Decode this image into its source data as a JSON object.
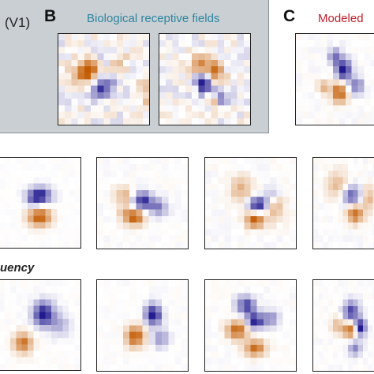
{
  "labels": {
    "v1_fragment": "(V1)",
    "panel_b": "B",
    "panel_b_title": "Biological receptive fields",
    "panel_c": "C",
    "panel_c_title": "Modeled",
    "row3_fragment": "uency"
  },
  "colors": {
    "orange": "#c35a00",
    "blue": "#18108a",
    "panel_bg": "#c9cfd3",
    "title_bio": "#2e86a0",
    "title_mod": "#c0202b"
  },
  "fields": [
    {
      "id": "bio-1",
      "noise": 0.18,
      "seed": 3,
      "blobs": [
        [
          0.32,
          0.42,
          0.55,
          0.55,
          1.0
        ],
        [
          0.48,
          0.58,
          0.5,
          0.42,
          -1.0
        ],
        [
          0.63,
          0.3,
          0.45,
          0.4,
          0.5
        ],
        [
          0.52,
          0.28,
          0.4,
          0.35,
          -0.4
        ],
        [
          0.95,
          0.63,
          0.3,
          0.7,
          0.45
        ]
      ]
    },
    {
      "id": "bio-2",
      "noise": 0.18,
      "seed": 7,
      "blobs": [
        [
          0.45,
          0.32,
          0.4,
          0.4,
          0.75
        ],
        [
          0.5,
          0.55,
          0.35,
          0.45,
          -1.0
        ],
        [
          0.62,
          0.42,
          0.35,
          0.45,
          0.9
        ],
        [
          0.67,
          0.7,
          0.3,
          0.3,
          -0.6
        ],
        [
          0.58,
          0.72,
          0.3,
          0.25,
          0.6
        ]
      ]
    },
    {
      "id": "mod-c",
      "noise": 0.05,
      "seed": 11,
      "blobs": [
        [
          0.45,
          0.25,
          0.35,
          0.35,
          -0.55
        ],
        [
          0.55,
          0.4,
          0.35,
          0.45,
          -1.0
        ],
        [
          0.5,
          0.65,
          0.35,
          0.45,
          1.0
        ],
        [
          0.32,
          0.58,
          0.3,
          0.3,
          0.45
        ],
        [
          0.7,
          0.58,
          0.35,
          0.4,
          -0.55
        ]
      ]
    },
    {
      "id": "r2-1",
      "noise": 0.02,
      "seed": 13,
      "blobs": [
        [
          0.5,
          0.42,
          0.55,
          0.35,
          -1.0
        ],
        [
          0.5,
          0.66,
          0.55,
          0.4,
          1.0
        ],
        [
          0.42,
          0.5,
          0.3,
          0.25,
          -0.3
        ]
      ]
    },
    {
      "id": "r2-2",
      "noise": 0.04,
      "seed": 17,
      "blobs": [
        [
          0.5,
          0.48,
          0.45,
          0.4,
          -0.9
        ],
        [
          0.42,
          0.65,
          0.4,
          0.35,
          1.0
        ],
        [
          0.3,
          0.42,
          0.4,
          0.45,
          0.45
        ],
        [
          0.68,
          0.55,
          0.4,
          0.4,
          -0.5
        ],
        [
          0.3,
          0.62,
          0.3,
          0.4,
          0.3
        ]
      ]
    },
    {
      "id": "r2-3",
      "noise": 0.05,
      "seed": 19,
      "blobs": [
        [
          0.58,
          0.52,
          0.45,
          0.35,
          -0.95
        ],
        [
          0.55,
          0.68,
          0.45,
          0.35,
          0.95
        ],
        [
          0.4,
          0.35,
          0.5,
          0.6,
          0.45
        ],
        [
          0.78,
          0.55,
          0.4,
          0.6,
          0.45
        ],
        [
          0.75,
          0.4,
          0.35,
          0.35,
          -0.3
        ]
      ]
    },
    {
      "id": "r2-4",
      "noise": 0.05,
      "seed": 23,
      "blobs": [
        [
          0.55,
          0.42,
          0.5,
          0.45,
          -0.7
        ],
        [
          0.6,
          0.62,
          0.45,
          0.4,
          0.9
        ],
        [
          0.35,
          0.3,
          0.6,
          0.6,
          0.4
        ],
        [
          0.8,
          0.45,
          0.4,
          0.6,
          0.4
        ]
      ]
    },
    {
      "id": "r3-1",
      "noise": 0.03,
      "seed": 29,
      "blobs": [
        [
          0.55,
          0.38,
          0.5,
          0.55,
          -1.0
        ],
        [
          0.3,
          0.7,
          0.45,
          0.45,
          0.85
        ],
        [
          0.75,
          0.5,
          0.45,
          0.5,
          -0.35
        ]
      ]
    },
    {
      "id": "r3-2",
      "noise": 0.03,
      "seed": 31,
      "blobs": [
        [
          0.62,
          0.38,
          0.35,
          0.45,
          -1.0
        ],
        [
          0.42,
          0.62,
          0.4,
          0.45,
          1.0
        ],
        [
          0.7,
          0.65,
          0.35,
          0.4,
          -0.45
        ]
      ]
    },
    {
      "id": "r3-3",
      "noise": 0.04,
      "seed": 37,
      "blobs": [
        [
          0.45,
          0.28,
          0.4,
          0.4,
          -0.8
        ],
        [
          0.55,
          0.45,
          0.35,
          0.35,
          -1.0
        ],
        [
          0.35,
          0.55,
          0.45,
          0.4,
          0.95
        ],
        [
          0.55,
          0.75,
          0.45,
          0.35,
          0.9
        ],
        [
          0.72,
          0.42,
          0.35,
          0.35,
          -0.5
        ]
      ]
    },
    {
      "id": "r3-4",
      "noise": 0.04,
      "seed": 41,
      "blobs": [
        [
          0.55,
          0.35,
          0.45,
          0.45,
          -0.8
        ],
        [
          0.52,
          0.55,
          0.35,
          0.35,
          0.9
        ],
        [
          0.68,
          0.52,
          0.3,
          0.35,
          -1.0
        ],
        [
          0.6,
          0.75,
          0.4,
          0.35,
          -0.5
        ],
        [
          0.35,
          0.5,
          0.35,
          0.35,
          0.45
        ]
      ]
    }
  ]
}
